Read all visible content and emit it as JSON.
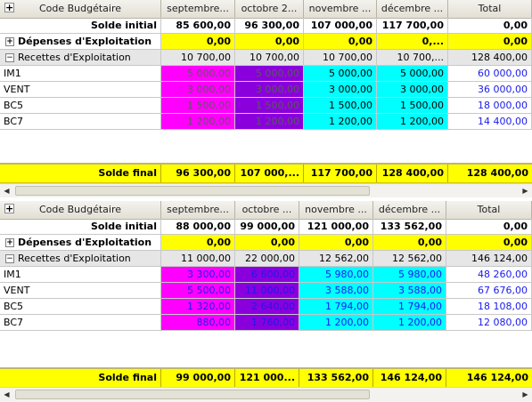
{
  "columns": {
    "code": "Code Budgétaire",
    "total": "Total"
  },
  "icons": {
    "expand": "plus-box-icon",
    "collapse": "minus-box-icon",
    "scroll_left": "arrow-left-icon",
    "scroll_right": "arrow-right-icon"
  },
  "colors": {
    "yellow": "#ffff00",
    "magenta": "#ff00ff",
    "purple": "#8a00dd",
    "cyan": "#00ffff",
    "value_blue": "#1a1aee"
  },
  "grid1": {
    "months": [
      "septembre...",
      "octobre 2...",
      "novembre ...",
      "décembre ..."
    ],
    "solde_initial": {
      "label": "Solde initial",
      "values": [
        "85 600,00",
        "96 300,00",
        "107 000,00",
        "117 700,00"
      ],
      "total": "0,00"
    },
    "depenses": {
      "label": "Dépenses d'Exploitation",
      "values": [
        "0,00",
        "0,00",
        "0,00",
        "0,..."
      ],
      "total": "0,00"
    },
    "recettes": {
      "label": "Recettes d'Exploitation",
      "values": [
        "10 700,00",
        "10 700,00",
        "10 700,00",
        "10 700,..."
      ],
      "total": "128 400,00"
    },
    "items": [
      {
        "label": "IM1",
        "values": [
          "5 000,00",
          "5 000,00",
          "5 000,00",
          "5 000,00"
        ],
        "total": "60 000,00"
      },
      {
        "label": "VENT",
        "values": [
          "3 000,00",
          "3 000,00",
          "3 000,00",
          "3 000,00"
        ],
        "total": "36 000,00"
      },
      {
        "label": "BC5",
        "values": [
          "1 500,00",
          "1 500,00",
          "1 500,00",
          "1 500,00"
        ],
        "total": "18 000,00"
      },
      {
        "label": "BC7",
        "values": [
          "1 200,00",
          "1 200,00",
          "1 200,00",
          "1 200,00"
        ],
        "total": "14 400,00"
      }
    ],
    "solde_final": {
      "label": "Solde final",
      "values": [
        "96 300,00",
        "107 000,...",
        "117 700,00",
        "128 400,00"
      ],
      "total": "128 400,00"
    }
  },
  "grid2": {
    "months": [
      "septembre...",
      "octobre ...",
      "novembre ...",
      "décembre ..."
    ],
    "solde_initial": {
      "label": "Solde initial",
      "values": [
        "88 000,00",
        "99 000,00",
        "121 000,00",
        "133 562,00"
      ],
      "total": "0,00"
    },
    "depenses": {
      "label": "Dépenses d'Exploitation",
      "values": [
        "0,00",
        "0,00",
        "0,00",
        "0,00"
      ],
      "total": "0,00"
    },
    "recettes": {
      "label": "Recettes d'Exploitation",
      "values": [
        "11 000,00",
        "22 000,00",
        "12 562,00",
        "12 562,00"
      ],
      "total": "146 124,00"
    },
    "items": [
      {
        "label": "IM1",
        "values": [
          "3 300,00",
          "6 600,00",
          "5 980,00",
          "5 980,00"
        ],
        "total": "48 260,00"
      },
      {
        "label": "VENT",
        "values": [
          "5 500,00",
          "11 000,00",
          "3 588,00",
          "3 588,00"
        ],
        "total": "67 676,00"
      },
      {
        "label": "BC5",
        "values": [
          "1 320,00",
          "2 640,00",
          "1 794,00",
          "1 794,00"
        ],
        "total": "18 108,00"
      },
      {
        "label": "BC7",
        "values": [
          "880,00",
          "1 760,00",
          "1 200,00",
          "1 200,00"
        ],
        "total": "12 080,00"
      }
    ],
    "solde_final": {
      "label": "Solde final",
      "values": [
        "99 000,00",
        "121 000...",
        "133 562,00",
        "146 124,00"
      ],
      "total": "146 124,00"
    }
  }
}
